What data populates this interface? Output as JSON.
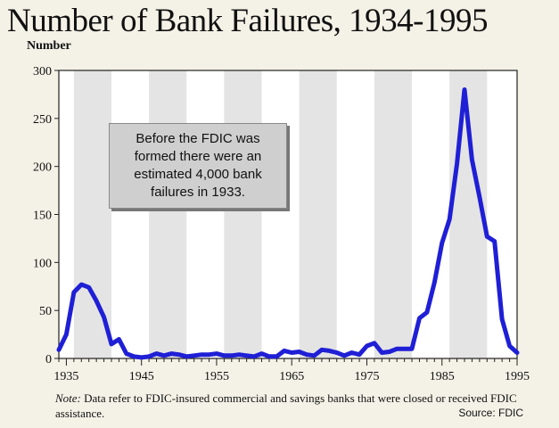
{
  "chart_data": {
    "type": "line",
    "title": "Number of Bank Failures, 1934-1995",
    "ylabel": "Number",
    "xlabel": "",
    "ylim": [
      0,
      300
    ],
    "xlim": [
      1934,
      1995
    ],
    "y_ticks": [
      0,
      50,
      100,
      150,
      200,
      250,
      300
    ],
    "x_ticks": [
      1935,
      1945,
      1955,
      1965,
      1975,
      1985,
      1995
    ],
    "grid": "alternating vertical bands",
    "series": [
      {
        "color": "#1f1fd6",
        "x": [
          1934,
          1935,
          1936,
          1937,
          1938,
          1939,
          1940,
          1941,
          1942,
          1943,
          1944,
          1945,
          1946,
          1947,
          1948,
          1949,
          1950,
          1951,
          1952,
          1953,
          1954,
          1955,
          1956,
          1957,
          1958,
          1959,
          1960,
          1961,
          1962,
          1963,
          1964,
          1965,
          1966,
          1967,
          1968,
          1969,
          1970,
          1971,
          1972,
          1973,
          1974,
          1975,
          1976,
          1977,
          1978,
          1979,
          1980,
          1981,
          1982,
          1983,
          1984,
          1985,
          1986,
          1987,
          1988,
          1989,
          1990,
          1991,
          1992,
          1993,
          1994,
          1995
        ],
        "y": [
          9,
          25,
          69,
          77,
          74,
          60,
          43,
          15,
          20,
          5,
          2,
          1,
          2,
          5,
          3,
          5,
          4,
          2,
          3,
          4,
          4,
          5,
          3,
          3,
          4,
          3,
          2,
          5,
          2,
          2,
          8,
          6,
          7,
          4,
          3,
          9,
          8,
          6,
          3,
          6,
          4,
          13,
          16,
          6,
          7,
          10,
          10,
          10,
          42,
          48,
          79,
          120,
          145,
          203,
          280,
          207,
          168,
          127,
          122,
          41,
          13,
          6
        ]
      }
    ],
    "annotation": "Before the FDIC was formed there were an estimated 4,000 bank failures in 1933."
  },
  "note_lead": "Note:",
  "note_text": "Data refer to FDIC-insured commercial and savings banks that were closed or received FDIC assistance.",
  "source": "Source: FDIC"
}
